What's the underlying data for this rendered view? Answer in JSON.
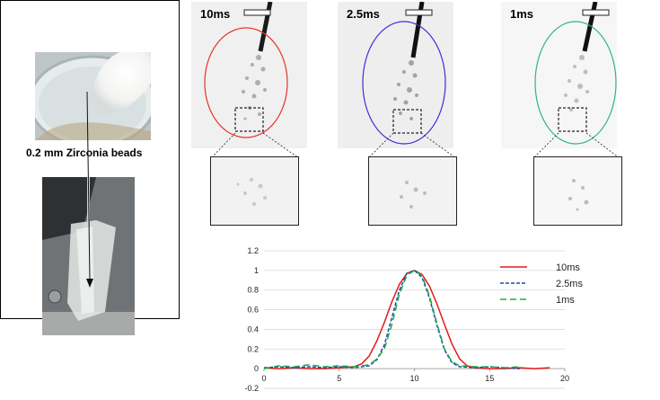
{
  "left_panel": {
    "caption": "0.2 mm Zirconia beads"
  },
  "images": [
    {
      "label": "10ms",
      "ellipse_color": "#e8332b"
    },
    {
      "label": "2.5ms",
      "ellipse_color": "#3b2fd6"
    },
    {
      "label": "1ms",
      "ellipse_color": "#2bb58a"
    }
  ],
  "chart_data": {
    "type": "line",
    "title": "",
    "xlabel": "",
    "ylabel": "",
    "xlim": [
      0,
      20
    ],
    "ylim": [
      -0.2,
      1.2
    ],
    "x_ticks": [
      "0",
      "5",
      "10",
      "15",
      "20"
    ],
    "y_ticks": [
      "-0.2",
      "0",
      "0.2",
      "0.4",
      "0.6",
      "0.8",
      "1",
      "1.2"
    ],
    "grid": "horizontal",
    "legend_position": "top-right",
    "series": [
      {
        "name": "10ms",
        "color": "#e31a1c",
        "dash": "solid",
        "x": [
          0,
          1,
          2,
          3,
          4,
          5,
          6,
          6.5,
          7,
          7.5,
          8,
          8.5,
          9,
          9.5,
          10,
          10.5,
          11,
          11.5,
          12,
          12.5,
          13,
          13.5,
          14,
          15,
          16,
          17,
          18,
          19
        ],
        "y": [
          0.01,
          0.0,
          0.01,
          0.0,
          0.0,
          0.01,
          0.02,
          0.05,
          0.13,
          0.28,
          0.47,
          0.68,
          0.86,
          0.97,
          1.0,
          0.96,
          0.84,
          0.66,
          0.45,
          0.25,
          0.1,
          0.03,
          0.01,
          0.0,
          0.0,
          0.01,
          0.0,
          0.01
        ]
      },
      {
        "name": "2.5ms",
        "color": "#1f4e9c",
        "dash": "4,2",
        "x": [
          0,
          1,
          2,
          3,
          4,
          5,
          6,
          7,
          7.5,
          8,
          8.5,
          9,
          9.5,
          10,
          10.5,
          11,
          11.5,
          12,
          12.5,
          13,
          14,
          15,
          16,
          17
        ],
        "y": [
          0.01,
          0.02,
          0.01,
          0.02,
          0.01,
          0.02,
          0.01,
          0.03,
          0.09,
          0.24,
          0.52,
          0.8,
          0.97,
          1.0,
          0.93,
          0.72,
          0.44,
          0.19,
          0.06,
          0.02,
          0.01,
          0.02,
          0.01,
          0.0
        ]
      },
      {
        "name": "1ms",
        "color": "#22a84a",
        "dash": "7,4",
        "x": [
          0,
          1,
          2,
          3,
          4,
          5,
          6,
          7,
          7.5,
          8,
          8.5,
          9,
          9.5,
          10,
          10.5,
          11,
          11.5,
          12,
          12.5,
          13,
          14,
          15,
          16,
          17
        ],
        "y": [
          0.0,
          0.03,
          0.02,
          0.04,
          0.02,
          0.03,
          0.02,
          0.04,
          0.1,
          0.2,
          0.45,
          0.76,
          0.95,
          1.0,
          0.95,
          0.74,
          0.46,
          0.2,
          0.07,
          0.03,
          0.02,
          0.02,
          0.01,
          0.02
        ]
      }
    ]
  }
}
